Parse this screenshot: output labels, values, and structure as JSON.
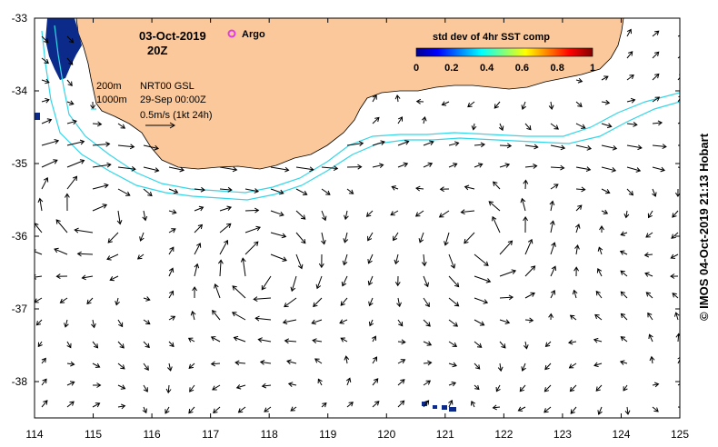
{
  "map": {
    "date": "03-Oct-2019",
    "time": "20Z",
    "argo_label": "Argo",
    "colorbar": {
      "title": "std dev of 4hr SST comp",
      "ticks": [
        "0",
        "0.2",
        "0.4",
        "0.6",
        "0.8",
        "1"
      ]
    },
    "legend": {
      "depth_200": "200m",
      "depth_1000": "1000m",
      "product": "NRT00 GSL",
      "product_date": "29-Sep 00:00Z",
      "scale": "0.5m/s (1kt 24h)"
    },
    "credit": "© IMOS 04-Oct-2019 21:13 Hobart",
    "x_ticks": [
      "114",
      "115",
      "116",
      "117",
      "118",
      "119",
      "120",
      "121",
      "122",
      "123",
      "124",
      "125"
    ],
    "y_ticks": [
      "-33",
      "-34",
      "-35",
      "-36",
      "-37",
      "-38"
    ],
    "colors": {
      "land": "#fac89a",
      "contours": "#33d6e8",
      "argo": "#e23be6",
      "sst_patch": "#0b2a8a"
    },
    "lon_range": [
      114,
      125
    ],
    "lat_range": [
      -38.5,
      -33
    ]
  }
}
